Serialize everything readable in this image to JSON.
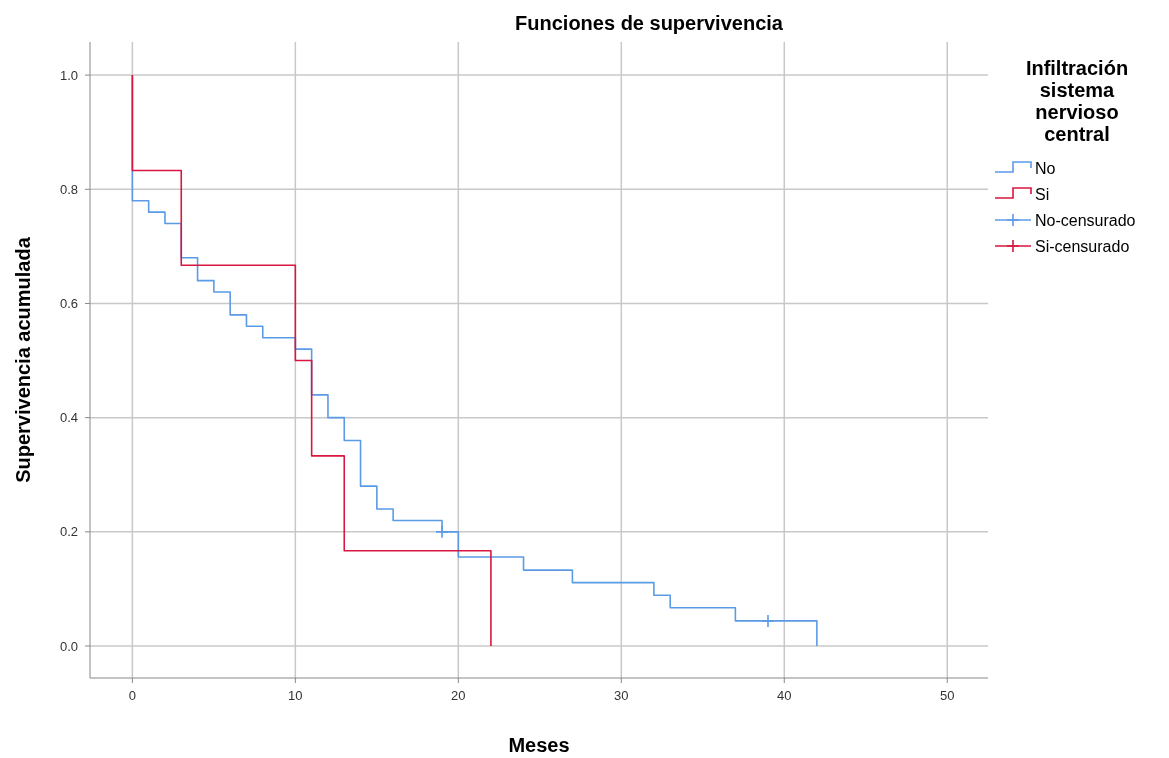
{
  "chart_data": {
    "type": "step",
    "title": "Funciones de supervivencia",
    "xlabel": "Meses",
    "ylabel": "Supervivencia acumulada",
    "legend_title": "Infiltración sistema nervioso central",
    "legend": "right",
    "grid": true,
    "xlim": [
      -2.6,
      52.5
    ],
    "xticks": [
      0,
      10,
      20,
      30,
      40,
      50
    ],
    "ylim": [
      -0.056,
      1.058
    ],
    "yticks": [
      {
        "value": 0,
        "label": "0.0"
      },
      {
        "value": 0.2,
        "label": "0.2"
      },
      {
        "value": 0.4,
        "label": "0.4"
      },
      {
        "value": 0.6,
        "label": "0.6"
      },
      {
        "value": 0.8,
        "label": "0.8"
      },
      {
        "value": 1,
        "label": "1.0"
      }
    ],
    "series": [
      {
        "name": "No",
        "color": "#5b9be6",
        "x": [
          0,
          0,
          1,
          2,
          3,
          4,
          5,
          6,
          7,
          8,
          10,
          11,
          12,
          13,
          14,
          15,
          16,
          19,
          20,
          24,
          27,
          32,
          33,
          37,
          42
        ],
        "values": [
          1,
          0.78,
          0.76,
          0.74,
          0.68,
          0.64,
          0.62,
          0.58,
          0.56,
          0.54,
          0.52,
          0.44,
          0.4,
          0.36,
          0.28,
          0.24,
          0.22,
          0.2,
          0.156,
          0.133,
          0.111,
          0.089,
          0.067,
          0.044,
          0
        ]
      },
      {
        "name": "Si",
        "color": "#d9163f",
        "x": [
          0,
          0,
          3,
          10,
          11,
          13,
          22
        ],
        "values": [
          1,
          0.833,
          0.667,
          0.5,
          0.333,
          0.167,
          0
        ]
      },
      {
        "name": "No-censurado",
        "type": "scatter",
        "marker": "cross",
        "color": "#5b9be6",
        "x": [
          19,
          39
        ],
        "values": [
          0.2,
          0.044
        ]
      },
      {
        "name": "Si-censurado",
        "type": "scatter",
        "marker": "cross",
        "color": "#d9163f"
      }
    ]
  }
}
